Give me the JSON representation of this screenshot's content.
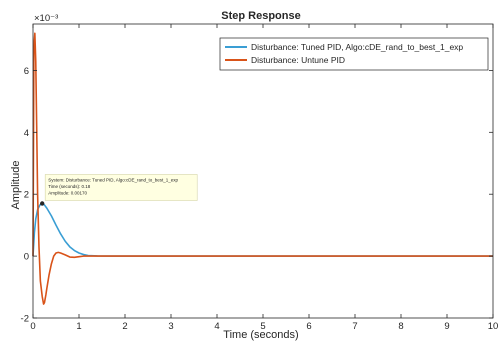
{
  "chart_data": {
    "type": "line",
    "title": "Step Response",
    "xlabel": "Time (seconds)",
    "ylabel": "Amplitude",
    "y_exponent_label": "×10⁻³",
    "xlim": [
      0,
      10
    ],
    "ylim": [
      -2,
      7.5
    ],
    "xticks": [
      "0",
      "1",
      "2",
      "3",
      "4",
      "5",
      "6",
      "7",
      "8",
      "9",
      "10"
    ],
    "yticks": [
      "-2",
      "0",
      "2",
      "4",
      "6"
    ],
    "grid": false,
    "legend_position": "top-right",
    "series": [
      {
        "name": "Disturbance: Tuned PID, Algo:cDE_rand_to_best_1_exp",
        "color": "#3a9ed4",
        "x": [
          0,
          0.03,
          0.06,
          0.1,
          0.15,
          0.2,
          0.25,
          0.3,
          0.4,
          0.5,
          0.6,
          0.7,
          0.8,
          0.9,
          1.0,
          1.1,
          1.2,
          1.4,
          1.7,
          2.0,
          3.0,
          5.0,
          7.0,
          10.0
        ],
        "y": [
          0,
          0.75,
          1.2,
          1.5,
          1.65,
          1.7,
          1.65,
          1.55,
          1.3,
          1.0,
          0.72,
          0.48,
          0.3,
          0.18,
          0.1,
          0.05,
          0.02,
          0.005,
          0.0,
          0.0,
          0.0,
          0.0,
          0.0,
          0.0
        ]
      },
      {
        "name": "Disturbance: Untune PID",
        "color": "#d95319",
        "x": [
          0,
          0.02,
          0.04,
          0.06,
          0.08,
          0.1,
          0.13,
          0.16,
          0.2,
          0.23,
          0.25,
          0.28,
          0.3,
          0.35,
          0.4,
          0.45,
          0.5,
          0.55,
          0.6,
          0.7,
          0.8,
          0.9,
          1.0,
          1.1,
          1.3,
          1.6,
          2.0,
          4.0,
          7.0,
          10.0
        ],
        "y": [
          0,
          6.8,
          7.2,
          6.3,
          4.2,
          2.0,
          0.3,
          -0.8,
          -1.3,
          -1.55,
          -1.5,
          -1.25,
          -1.05,
          -0.6,
          -0.25,
          0.0,
          0.1,
          0.12,
          0.1,
          0.04,
          -0.03,
          -0.04,
          -0.02,
          0.0,
          0.0,
          0.0,
          0.0,
          0.0,
          0.0,
          0.0
        ]
      }
    ],
    "annotation": {
      "lines": [
        "System: Disturbance: Tuned PID, Algo:cDE_rand_to_best_1_exp",
        "Time (seconds): 0.18",
        "Amplitude: 0.00170"
      ],
      "x": 0.2,
      "y": 1.7
    }
  }
}
